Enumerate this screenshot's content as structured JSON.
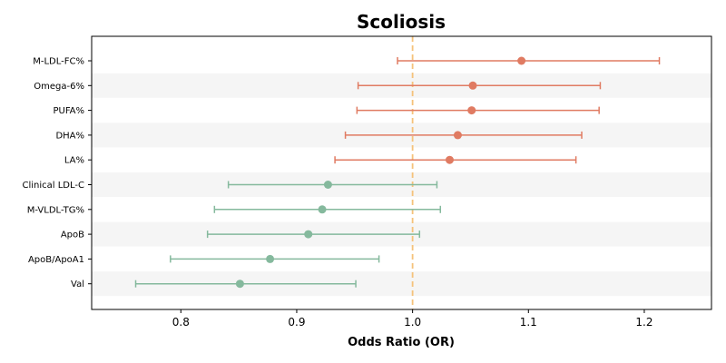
{
  "chart_data": {
    "type": "forest",
    "title": "Scoliosis",
    "xlabel": "Odds Ratio (OR)",
    "ylabel": "",
    "xlim": [
      0.723,
      1.258
    ],
    "xticks": [
      0.8,
      0.9,
      1.0,
      1.1,
      1.2
    ],
    "xtick_labels": [
      "0.8",
      "0.9",
      "1.0",
      "1.1",
      "1.2"
    ],
    "reference_line": 1.0,
    "reference_line_color": "#f5c27a",
    "colors": {
      "risk": "#e07b62",
      "protective": "#85b99d",
      "stripe": "#f5f5f5"
    },
    "grid": false,
    "rows": [
      {
        "label": "M-LDL-FC%",
        "or": 1.094,
        "lower": 0.987,
        "upper": 1.213,
        "group": "risk"
      },
      {
        "label": "Omega-6%",
        "or": 1.052,
        "lower": 0.953,
        "upper": 1.162,
        "group": "risk"
      },
      {
        "label": "PUFA%",
        "or": 1.051,
        "lower": 0.952,
        "upper": 1.161,
        "group": "risk"
      },
      {
        "label": "DHA%",
        "or": 1.039,
        "lower": 0.942,
        "upper": 1.146,
        "group": "risk"
      },
      {
        "label": "LA%",
        "or": 1.032,
        "lower": 0.933,
        "upper": 1.141,
        "group": "risk"
      },
      {
        "label": "Clinical LDL-C",
        "or": 0.927,
        "lower": 0.841,
        "upper": 1.021,
        "group": "protective"
      },
      {
        "label": "M-VLDL-TG%",
        "or": 0.922,
        "lower": 0.829,
        "upper": 1.024,
        "group": "protective"
      },
      {
        "label": "ApoB",
        "or": 0.91,
        "lower": 0.823,
        "upper": 1.006,
        "group": "protective"
      },
      {
        "label": "ApoB/ApoA1",
        "or": 0.877,
        "lower": 0.791,
        "upper": 0.971,
        "group": "protective"
      },
      {
        "label": "Val",
        "or": 0.851,
        "lower": 0.761,
        "upper": 0.951,
        "group": "protective"
      }
    ]
  }
}
